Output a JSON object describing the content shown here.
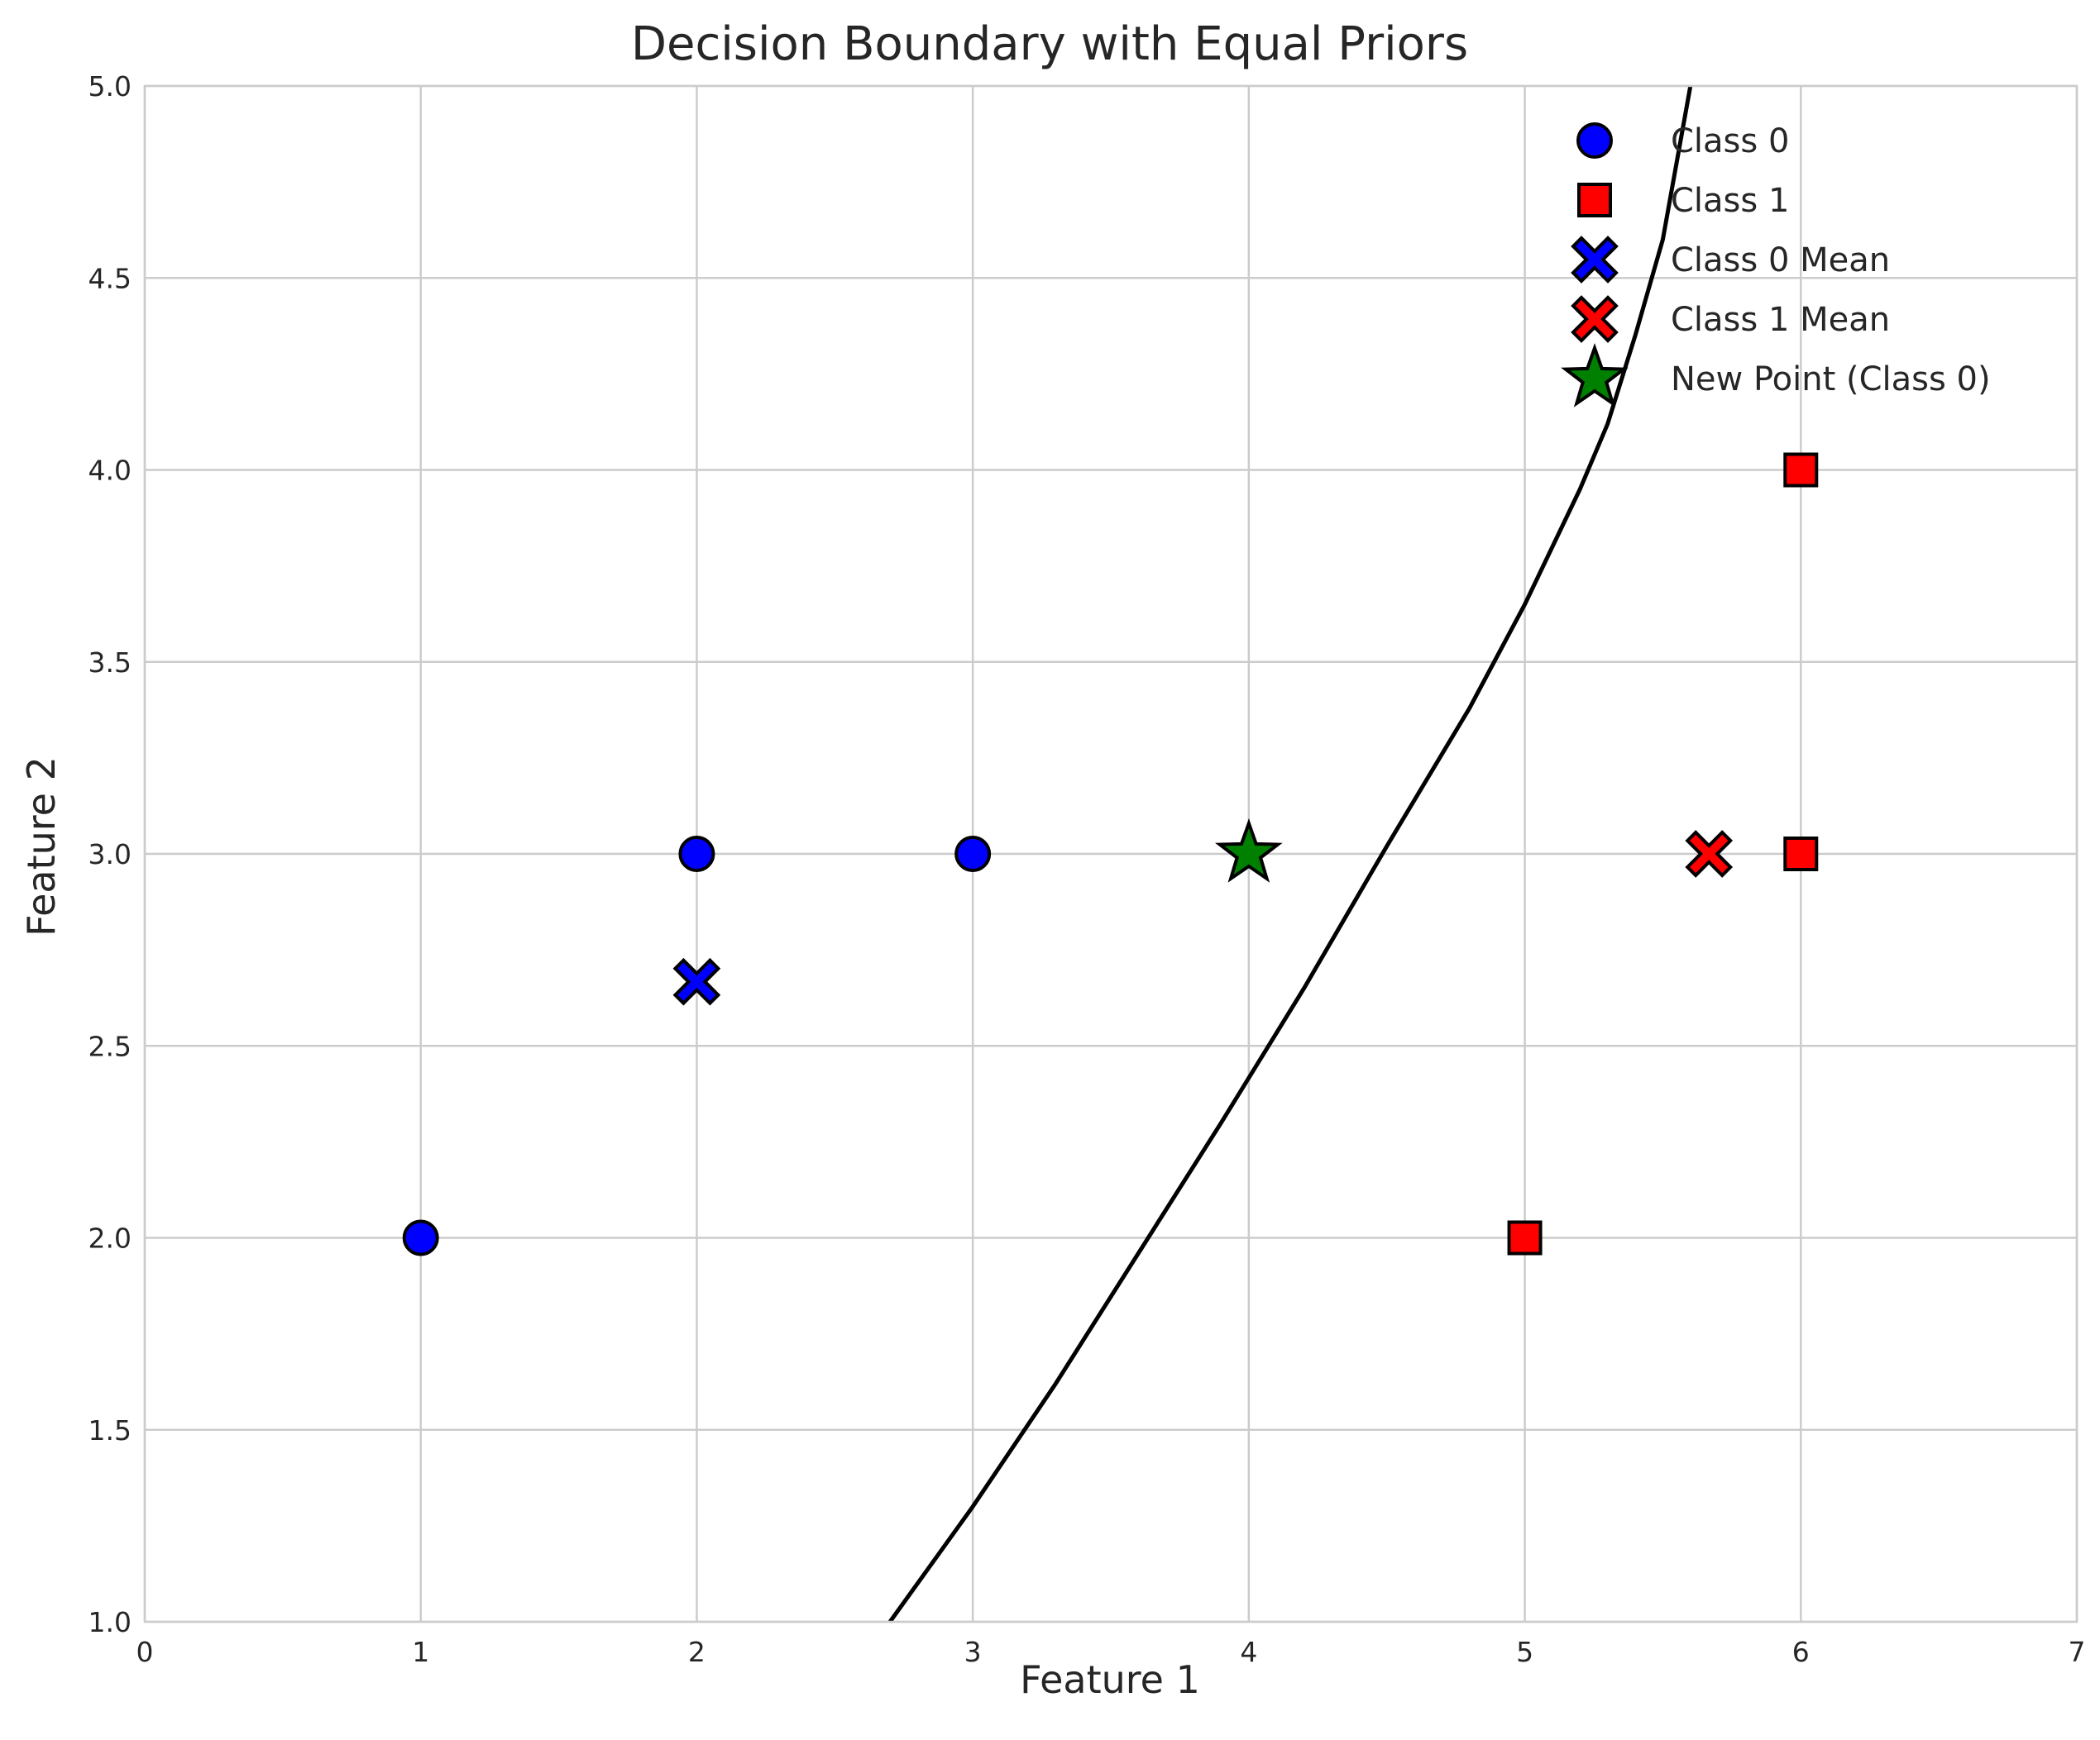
{
  "chart_data": {
    "type": "scatter",
    "title": "Decision Boundary with Equal Priors",
    "xlabel": "Feature 1",
    "ylabel": "Feature 2",
    "xlim": [
      0,
      7
    ],
    "ylim": [
      1,
      5
    ],
    "x_ticks": [
      0,
      1,
      2,
      3,
      4,
      5,
      6,
      7
    ],
    "x_tick_labels": [
      "0",
      "1",
      "2",
      "3",
      "4",
      "5",
      "6",
      "7"
    ],
    "y_ticks": [
      1.0,
      1.5,
      2.0,
      2.5,
      3.0,
      3.5,
      4.0,
      4.5,
      5.0
    ],
    "y_tick_labels": [
      "1.0",
      "1.5",
      "2.0",
      "2.5",
      "3.0",
      "3.5",
      "4.0",
      "4.5",
      "5.0"
    ],
    "grid": true,
    "legend_position": "top-right",
    "series": [
      {
        "name": "Class 0",
        "marker": "circle",
        "color": "#0000ff",
        "points": [
          [
            1,
            2
          ],
          [
            2,
            3
          ],
          [
            3,
            3
          ]
        ]
      },
      {
        "name": "Class 1",
        "marker": "square",
        "color": "#ff0000",
        "points": [
          [
            5,
            2
          ],
          [
            6,
            3
          ],
          [
            6,
            4
          ]
        ]
      },
      {
        "name": "Class 0 Mean",
        "marker": "x",
        "color": "#0000ff",
        "points": [
          [
            2,
            2.667
          ]
        ]
      },
      {
        "name": "Class 1 Mean",
        "marker": "x",
        "color": "#ff0000",
        "points": [
          [
            5.667,
            3
          ]
        ]
      },
      {
        "name": "New Point (Class 0)",
        "marker": "star",
        "color": "#008000",
        "points": [
          [
            4,
            3
          ]
        ]
      }
    ],
    "boundary": {
      "color": "#000000",
      "points": [
        [
          2.7,
          1.0
        ],
        [
          3.0,
          1.3
        ],
        [
          3.3,
          1.62
        ],
        [
          3.6,
          1.96
        ],
        [
          3.9,
          2.3
        ],
        [
          4.2,
          2.65
        ],
        [
          4.5,
          3.02
        ],
        [
          4.8,
          3.38
        ],
        [
          5.0,
          3.65
        ],
        [
          5.2,
          3.95
        ],
        [
          5.3,
          4.12
        ],
        [
          5.4,
          4.35
        ],
        [
          5.5,
          4.6
        ],
        [
          5.6,
          5.0
        ]
      ]
    }
  }
}
